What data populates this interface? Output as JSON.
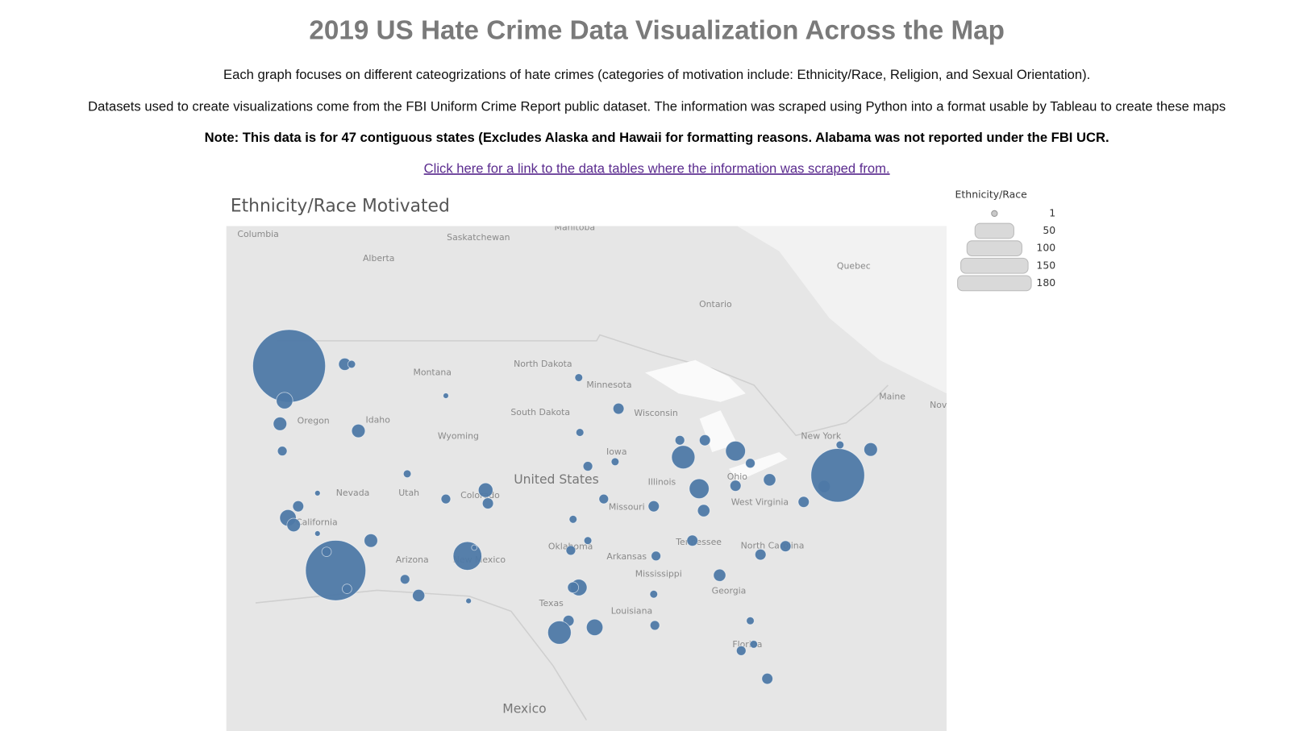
{
  "header": {
    "title": "2019 US Hate Crime Data Visualization Across the Map",
    "description": "Each graph focuses on different cateogrizations of hate crimes (categories of motivation include: Ethnicity/Race, Religion, and Sexual Orientation).",
    "datasets": "Datasets used to create visualizations come from the FBI Uniform Crime Report public dataset. The information was scraped using Python into a format usable by Tableau to create these maps",
    "note": "Note: This data is for 47 contiguous states (Excludes Alaska and Hawaii for formatting reasons. Alabama was not reported under the FBI UCR.",
    "link": "Click here for a link to the data tables where the information was scraped from."
  },
  "map": {
    "title": "Ethnicity/Race Motivated",
    "color": "#4e79a7",
    "labels": [
      "Columbia",
      "Saskatchewan",
      "Manitoba",
      "Alberta",
      "Quebec",
      "Ontario",
      "North Dakota",
      "Montana",
      "Minnesota",
      "Wisconsin",
      "South Dakota",
      "Idaho",
      "Oregon",
      "Wyoming",
      "Iowa",
      "New York",
      "Maine",
      "Nov",
      "Nevada",
      "Utah",
      "Colorado",
      "United States",
      "Illinois",
      "Missouri",
      "Ohio",
      "West Virginia",
      "California",
      "Arizona",
      "New Mexico",
      "Oklahoma",
      "Arkansas",
      "Tennessee",
      "North Carolina",
      "Mississippi",
      "Georgia",
      "Texas",
      "Louisiana",
      "Florida",
      "Mexico"
    ],
    "bubbles": [
      {
        "lon": -122.3,
        "lat": 47.6,
        "value": 175
      },
      {
        "lon": -122.7,
        "lat": 45.5,
        "value": 9
      },
      {
        "lon": -123.1,
        "lat": 44.05,
        "value": 6
      },
      {
        "lon": -117.4,
        "lat": 47.7,
        "value": 5
      },
      {
        "lon": -116.8,
        "lat": 47.7,
        "value": 2
      },
      {
        "lon": -116.2,
        "lat": 43.6,
        "value": 6
      },
      {
        "lon": -122.9,
        "lat": 42.3,
        "value": 3
      },
      {
        "lon": -119.8,
        "lat": 39.5,
        "value": 1
      },
      {
        "lon": -121.5,
        "lat": 38.6,
        "value": 4
      },
      {
        "lon": -122.4,
        "lat": 37.8,
        "value": 9
      },
      {
        "lon": -121.9,
        "lat": 37.3,
        "value": 6
      },
      {
        "lon": -119.8,
        "lat": 36.7,
        "value": 1
      },
      {
        "lon": -118.2,
        "lat": 34.05,
        "value": 120
      },
      {
        "lon": -117.2,
        "lat": 32.7,
        "value": 3
      },
      {
        "lon": -119.0,
        "lat": 35.4,
        "value": 3
      },
      {
        "lon": -115.1,
        "lat": 36.2,
        "value": 6
      },
      {
        "lon": -112.1,
        "lat": 33.4,
        "value": 3
      },
      {
        "lon": -110.9,
        "lat": 32.2,
        "value": 5
      },
      {
        "lon": -111.9,
        "lat": 40.8,
        "value": 2
      },
      {
        "lon": -105.0,
        "lat": 39.7,
        "value": 7
      },
      {
        "lon": -104.8,
        "lat": 38.8,
        "value": 4
      },
      {
        "lon": -108.5,
        "lat": 39.1,
        "value": 3
      },
      {
        "lon": -106.6,
        "lat": 35.1,
        "value": 27
      },
      {
        "lon": -106.0,
        "lat": 35.7,
        "value": 1
      },
      {
        "lon": -106.5,
        "lat": 31.8,
        "value": 1
      },
      {
        "lon": -108.5,
        "lat": 45.8,
        "value": 1
      },
      {
        "lon": -96.8,
        "lat": 46.9,
        "value": 2
      },
      {
        "lon": -96.7,
        "lat": 43.5,
        "value": 2
      },
      {
        "lon": -96.0,
        "lat": 41.3,
        "value": 3
      },
      {
        "lon": -93.3,
        "lat": 45.0,
        "value": 4
      },
      {
        "lon": -93.6,
        "lat": 41.6,
        "value": 2
      },
      {
        "lon": -94.6,
        "lat": 39.1,
        "value": 3
      },
      {
        "lon": -97.3,
        "lat": 37.7,
        "value": 2
      },
      {
        "lon": -90.2,
        "lat": 38.6,
        "value": 4
      },
      {
        "lon": -87.9,
        "lat": 43.0,
        "value": 3
      },
      {
        "lon": -87.6,
        "lat": 41.9,
        "value": 18
      },
      {
        "lon": -86.2,
        "lat": 39.8,
        "value": 13
      },
      {
        "lon": -83.0,
        "lat": 42.3,
        "value": 13
      },
      {
        "lon": -85.7,
        "lat": 43.0,
        "value": 4
      },
      {
        "lon": -83.0,
        "lat": 40.0,
        "value": 4
      },
      {
        "lon": -81.7,
        "lat": 41.5,
        "value": 3
      },
      {
        "lon": -80.0,
        "lat": 40.4,
        "value": 5
      },
      {
        "lon": -85.8,
        "lat": 38.3,
        "value": 5
      },
      {
        "lon": -86.8,
        "lat": 36.2,
        "value": 4
      },
      {
        "lon": -90.0,
        "lat": 35.1,
        "value": 3
      },
      {
        "lon": -97.5,
        "lat": 35.5,
        "value": 3
      },
      {
        "lon": -96.0,
        "lat": 36.2,
        "value": 2
      },
      {
        "lon": -96.8,
        "lat": 32.8,
        "value": 9
      },
      {
        "lon": -97.3,
        "lat": 32.8,
        "value": 4
      },
      {
        "lon": -97.7,
        "lat": 30.3,
        "value": 4
      },
      {
        "lon": -98.5,
        "lat": 29.4,
        "value": 18
      },
      {
        "lon": -95.4,
        "lat": 29.8,
        "value": 9
      },
      {
        "lon": -90.1,
        "lat": 29.95,
        "value": 3
      },
      {
        "lon": -90.2,
        "lat": 32.3,
        "value": 2
      },
      {
        "lon": -84.4,
        "lat": 33.7,
        "value": 5
      },
      {
        "lon": -80.8,
        "lat": 35.2,
        "value": 4
      },
      {
        "lon": -78.6,
        "lat": 35.8,
        "value": 4
      },
      {
        "lon": -77.0,
        "lat": 38.9,
        "value": 4
      },
      {
        "lon": -75.2,
        "lat": 39.95,
        "value": 5
      },
      {
        "lon": -74.0,
        "lat": 40.7,
        "value": 95
      },
      {
        "lon": -71.1,
        "lat": 42.4,
        "value": 6
      },
      {
        "lon": -73.8,
        "lat": 42.7,
        "value": 2
      },
      {
        "lon": -82.5,
        "lat": 28.0,
        "value": 3
      },
      {
        "lon": -81.4,
        "lat": 28.5,
        "value": 2
      },
      {
        "lon": -80.2,
        "lat": 25.8,
        "value": 4
      },
      {
        "lon": -81.7,
        "lat": 30.3,
        "value": 2
      }
    ]
  },
  "legend": {
    "title": "Ethnicity/Race",
    "values": [
      1,
      50,
      100,
      150,
      180
    ]
  }
}
